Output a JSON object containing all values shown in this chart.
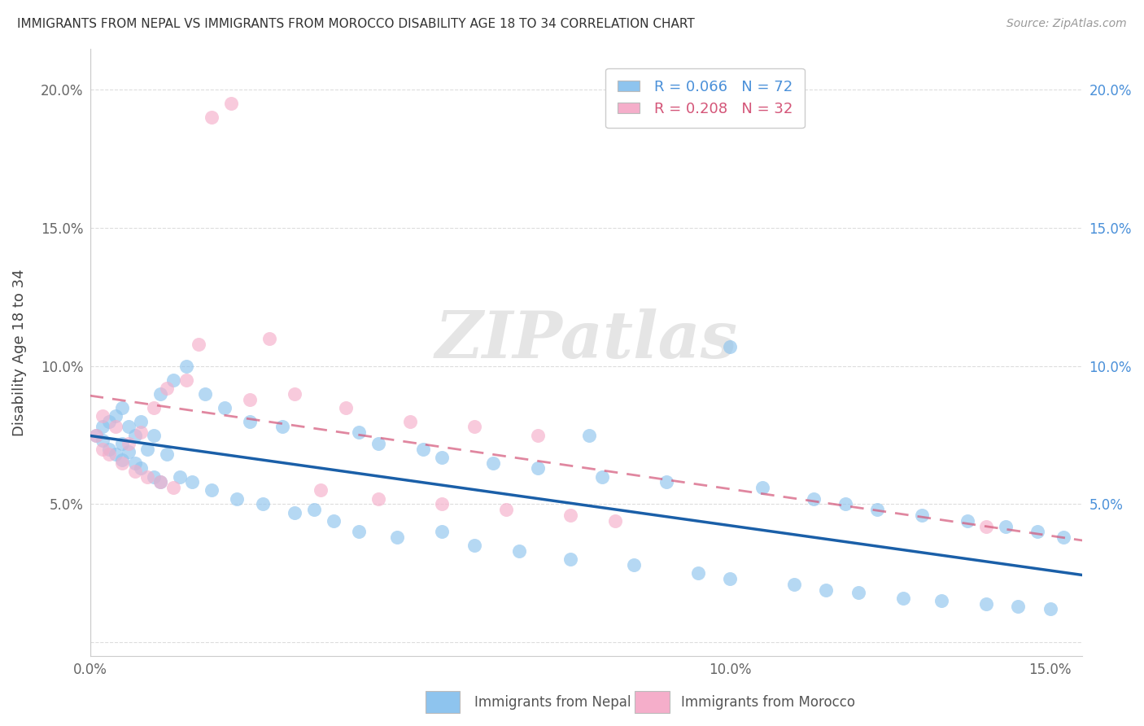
{
  "title": "IMMIGRANTS FROM NEPAL VS IMMIGRANTS FROM MOROCCO DISABILITY AGE 18 TO 34 CORRELATION CHART",
  "source": "Source: ZipAtlas.com",
  "ylabel": "Disability Age 18 to 34",
  "xlim": [
    0.0,
    0.155
  ],
  "ylim": [
    -0.005,
    0.215
  ],
  "xticks": [
    0.0,
    0.05,
    0.1,
    0.15
  ],
  "yticks": [
    0.0,
    0.05,
    0.1,
    0.15,
    0.2
  ],
  "xtick_labels": [
    "0.0%",
    "",
    "10.0%",
    "15.0%"
  ],
  "ytick_labels": [
    "",
    "5.0%",
    "10.0%",
    "15.0%",
    "20.0%"
  ],
  "nepal_color": "#8EC4EE",
  "morocco_color": "#F5AECA",
  "nepal_line_color": "#1a5fa8",
  "morocco_line_color": "#d45578",
  "nepal_r": 0.066,
  "nepal_n": 72,
  "morocco_r": 0.208,
  "morocco_n": 32,
  "nepal_label": "Immigrants from Nepal",
  "morocco_label": "Immigrants from Morocco",
  "nepal_x": [
    0.001,
    0.002,
    0.002,
    0.003,
    0.003,
    0.004,
    0.004,
    0.005,
    0.005,
    0.005,
    0.006,
    0.006,
    0.007,
    0.007,
    0.008,
    0.008,
    0.009,
    0.01,
    0.01,
    0.011,
    0.011,
    0.012,
    0.013,
    0.014,
    0.015,
    0.016,
    0.018,
    0.019,
    0.021,
    0.023,
    0.025,
    0.027,
    0.03,
    0.032,
    0.035,
    0.038,
    0.042,
    0.045,
    0.048,
    0.052,
    0.055,
    0.06,
    0.063,
    0.067,
    0.07,
    0.075,
    0.08,
    0.085,
    0.09,
    0.095,
    0.1,
    0.105,
    0.11,
    0.113,
    0.115,
    0.118,
    0.12,
    0.123,
    0.127,
    0.13,
    0.133,
    0.137,
    0.14,
    0.143,
    0.145,
    0.148,
    0.15,
    0.152,
    0.1,
    0.055,
    0.078,
    0.042
  ],
  "nepal_y": [
    0.075,
    0.073,
    0.078,
    0.07,
    0.08,
    0.068,
    0.082,
    0.066,
    0.072,
    0.085,
    0.069,
    0.078,
    0.065,
    0.075,
    0.063,
    0.08,
    0.07,
    0.06,
    0.075,
    0.058,
    0.09,
    0.068,
    0.095,
    0.06,
    0.1,
    0.058,
    0.09,
    0.055,
    0.085,
    0.052,
    0.08,
    0.05,
    0.078,
    0.047,
    0.048,
    0.044,
    0.04,
    0.072,
    0.038,
    0.07,
    0.067,
    0.035,
    0.065,
    0.033,
    0.063,
    0.03,
    0.06,
    0.028,
    0.058,
    0.025,
    0.023,
    0.056,
    0.021,
    0.052,
    0.019,
    0.05,
    0.018,
    0.048,
    0.016,
    0.046,
    0.015,
    0.044,
    0.014,
    0.042,
    0.013,
    0.04,
    0.012,
    0.038,
    0.107,
    0.04,
    0.075,
    0.076
  ],
  "morocco_x": [
    0.001,
    0.002,
    0.002,
    0.003,
    0.004,
    0.005,
    0.006,
    0.007,
    0.008,
    0.009,
    0.01,
    0.011,
    0.012,
    0.013,
    0.015,
    0.017,
    0.019,
    0.022,
    0.025,
    0.028,
    0.032,
    0.036,
    0.04,
    0.045,
    0.05,
    0.055,
    0.06,
    0.065,
    0.07,
    0.075,
    0.082,
    0.14
  ],
  "morocco_y": [
    0.075,
    0.07,
    0.082,
    0.068,
    0.078,
    0.065,
    0.072,
    0.062,
    0.076,
    0.06,
    0.085,
    0.058,
    0.092,
    0.056,
    0.095,
    0.108,
    0.19,
    0.195,
    0.088,
    0.11,
    0.09,
    0.055,
    0.085,
    0.052,
    0.08,
    0.05,
    0.078,
    0.048,
    0.075,
    0.046,
    0.044,
    0.042
  ],
  "background_color": "#FFFFFF",
  "grid_color": "#DDDDDD",
  "watermark_text": "ZIPatlas",
  "watermark_color": "#CCCCCC"
}
